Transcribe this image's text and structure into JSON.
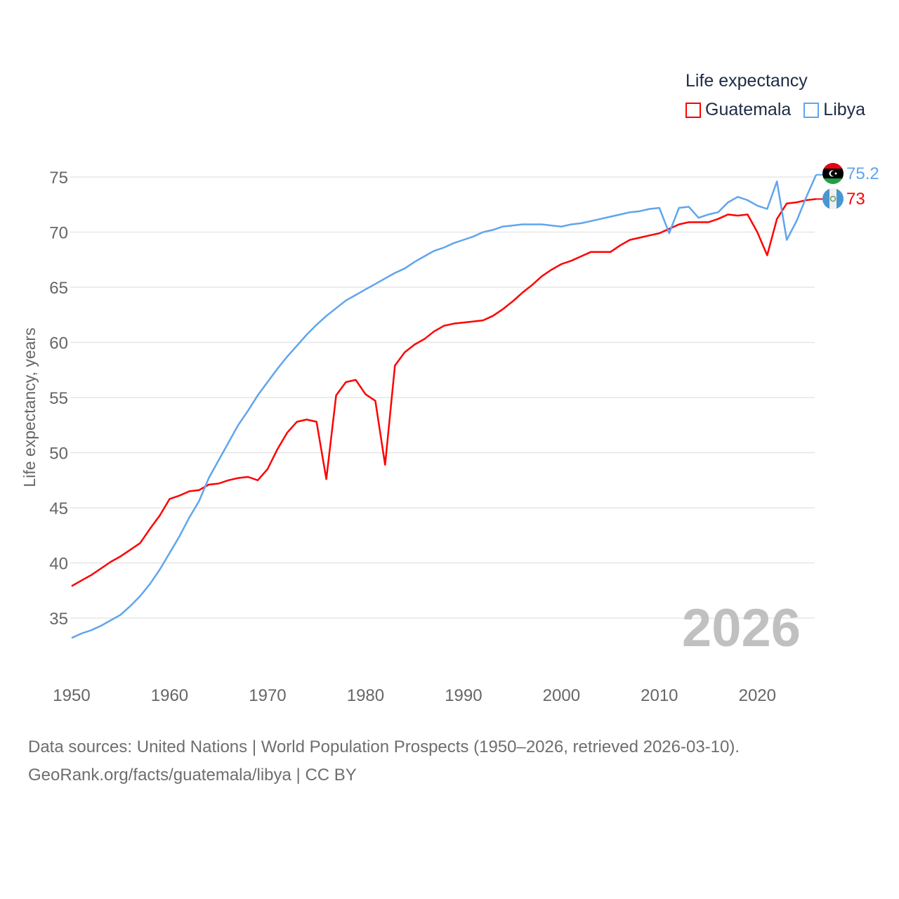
{
  "legend": {
    "title": "Life expectancy"
  },
  "sources": {
    "line1": "Data sources: United Nations | World Population Prospects (1950–2026, retrieved 2026-03-10).",
    "line2": "GeoRank.org/facts/guatemala/libya | CC BY"
  },
  "chart_data": {
    "type": "line",
    "title": "Life expectancy",
    "xlabel": "",
    "ylabel": "Life expectancy, years",
    "xlim": [
      1950,
      2026
    ],
    "ylim": [
      30,
      76
    ],
    "yticks": [
      35,
      40,
      45,
      50,
      55,
      60,
      65,
      70,
      75
    ],
    "xticks": [
      1950,
      1960,
      1970,
      1980,
      1990,
      2000,
      2010,
      2020
    ],
    "grid": true,
    "legend_position": "top-right",
    "year_label": "2026",
    "x_start": 1950,
    "series": [
      {
        "name": "Guatemala",
        "color": "#ff0000",
        "end_label": "73",
        "flag": "guatemala-flag",
        "values": [
          37.9,
          38.4,
          38.9,
          39.5,
          40.1,
          40.6,
          41.2,
          41.8,
          43.1,
          44.3,
          45.8,
          46.1,
          46.5,
          46.6,
          47.1,
          47.2,
          47.5,
          47.7,
          47.8,
          47.5,
          48.5,
          50.3,
          51.8,
          52.8,
          53.0,
          52.8,
          47.6,
          55.2,
          56.4,
          56.6,
          55.3,
          54.7,
          48.9,
          57.9,
          59.1,
          59.8,
          60.3,
          61.0,
          61.5,
          61.7,
          61.8,
          61.9,
          62.0,
          62.4,
          63.0,
          63.7,
          64.5,
          65.2,
          66.0,
          66.6,
          67.1,
          67.4,
          67.8,
          68.2,
          68.2,
          68.2,
          68.8,
          69.3,
          69.5,
          69.7,
          69.9,
          70.3,
          70.7,
          70.9,
          70.9,
          70.9,
          71.2,
          71.6,
          71.5,
          71.6,
          70.0,
          67.9,
          71.2,
          72.6,
          72.7,
          72.9,
          73.0
        ]
      },
      {
        "name": "Libya",
        "color": "#5fa5ee",
        "end_label": "75.2",
        "flag": "libya-flag",
        "values": [
          33.2,
          33.6,
          33.9,
          34.3,
          34.8,
          35.3,
          36.1,
          37.0,
          38.1,
          39.4,
          40.9,
          42.4,
          44.1,
          45.6,
          47.7,
          49.3,
          50.9,
          52.5,
          53.8,
          55.2,
          56.4,
          57.6,
          58.7,
          59.7,
          60.7,
          61.6,
          62.4,
          63.1,
          63.8,
          64.3,
          64.8,
          65.3,
          65.8,
          66.3,
          66.7,
          67.3,
          67.8,
          68.3,
          68.6,
          69.0,
          69.3,
          69.6,
          70.0,
          70.2,
          70.5,
          70.6,
          70.7,
          70.7,
          70.7,
          70.6,
          70.5,
          70.7,
          70.8,
          71.0,
          71.2,
          71.4,
          71.6,
          71.8,
          71.9,
          72.1,
          72.2,
          69.9,
          72.2,
          72.3,
          71.3,
          71.6,
          71.8,
          72.7,
          73.2,
          72.9,
          72.4,
          72.1,
          74.6,
          69.3,
          71.0,
          73.2,
          75.2
        ]
      }
    ]
  }
}
